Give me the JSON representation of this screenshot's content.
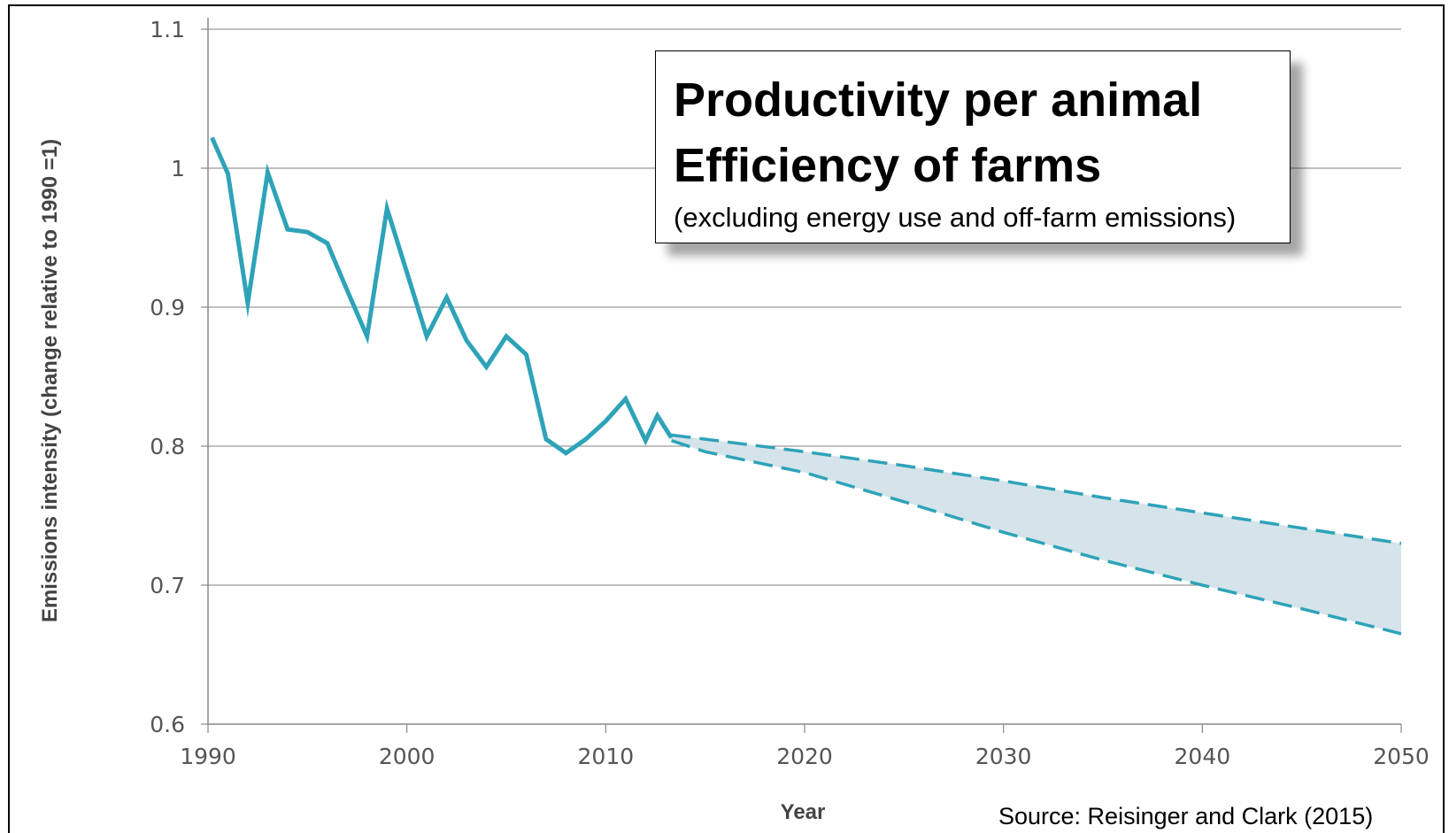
{
  "chart_data": {
    "type": "line",
    "xlabel": "Year",
    "ylabel": "Emissions intensity (change relative to 1990 =1)",
    "xlim": [
      1990,
      2050
    ],
    "ylim": [
      0.6,
      1.1
    ],
    "x_ticks": [
      1990,
      2000,
      2010,
      2020,
      2030,
      2040,
      2050
    ],
    "y_ticks": [
      0.6,
      0.7,
      0.8,
      0.9,
      1,
      1.1
    ],
    "y_tick_labels": [
      "0.6",
      "0.7",
      "0.8",
      "0.9",
      "1",
      "1.1"
    ],
    "grid": "horizontal",
    "colors": {
      "series": "#2ea3b8",
      "band": "#d5e4ea",
      "grid": "#9a9a9a"
    },
    "historical": {
      "x": [
        1990.2,
        1991,
        1992,
        1993,
        1994,
        1995,
        1996,
        1997,
        1998,
        1999,
        2000,
        2001,
        2002,
        2003,
        2004,
        2005,
        2006,
        2007,
        2008,
        2009,
        2010,
        2011,
        2012,
        2012.6,
        2013.3
      ],
      "y": [
        1.022,
        0.996,
        0.903,
        0.997,
        0.956,
        0.954,
        0.946,
        0.912,
        0.879,
        0.971,
        0.925,
        0.879,
        0.907,
        0.876,
        0.857,
        0.879,
        0.866,
        0.805,
        0.795,
        0.805,
        0.818,
        0.834,
        0.804,
        0.822,
        0.806
      ]
    },
    "projection_upper": {
      "x": [
        2013.3,
        2015,
        2020,
        2025,
        2030,
        2035,
        2040,
        2045,
        2050
      ],
      "y": [
        0.808,
        0.805,
        0.796,
        0.786,
        0.775,
        0.763,
        0.752,
        0.741,
        0.73
      ]
    },
    "projection_lower": {
      "x": [
        2013.3,
        2015,
        2020,
        2025,
        2030,
        2035,
        2040,
        2045,
        2050
      ],
      "y": [
        0.804,
        0.796,
        0.781,
        0.76,
        0.738,
        0.718,
        0.7,
        0.683,
        0.665
      ]
    },
    "annotation": {
      "line1": "Productivity per animal",
      "line2": "Efficiency of farms",
      "line3": "(excluding energy use and off-farm emissions)"
    },
    "source": "Source: Reisinger and Clark  (2015)"
  }
}
